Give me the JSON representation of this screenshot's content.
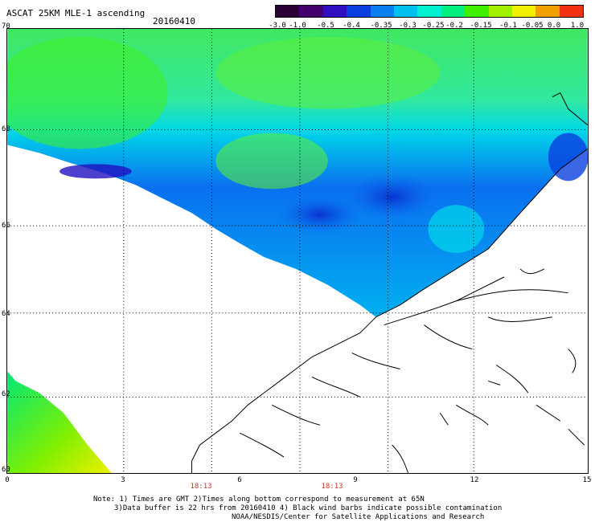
{
  "header": {
    "title": "ASCAT 25KM MLE-1 ascending",
    "date": "20160410"
  },
  "colorbar": {
    "colors": [
      "#2a0036",
      "#45006e",
      "#3010c0",
      "#0a40e0",
      "#0a80f0",
      "#00c0f0",
      "#00f0d0",
      "#00f080",
      "#40f000",
      "#a0f000",
      "#f0f000",
      "#f0a000",
      "#f03010"
    ],
    "labels": [
      "-3.0",
      "-1.0",
      "-0.5",
      "-0.4",
      "-0.35",
      "-0.3",
      "-0.25",
      "-0.2",
      "-0.15",
      "-0.1",
      "-0.05",
      "0.0",
      "1.0"
    ]
  },
  "axes": {
    "lat_labels": [
      "70",
      "68",
      "66",
      "64",
      "62",
      "60"
    ],
    "lon_labels": [
      "0",
      "3",
      "6",
      "9",
      "12",
      "15"
    ],
    "time_labels": [
      "18:13",
      "18:13"
    ]
  },
  "notes": {
    "line1": "Note: 1) Times are GMT 2)Times along bottom correspond to measurement at 65N",
    "line2": "3)Data buffer is 22 hrs from 20160410 4) Black wind barbs indicate possible contamination",
    "line3": "NOAA/NESDIS/Center for Satellite Applications and Research"
  },
  "colors": {
    "time_label": "#c0392b",
    "coast": "#000000",
    "grid": "#000000"
  }
}
